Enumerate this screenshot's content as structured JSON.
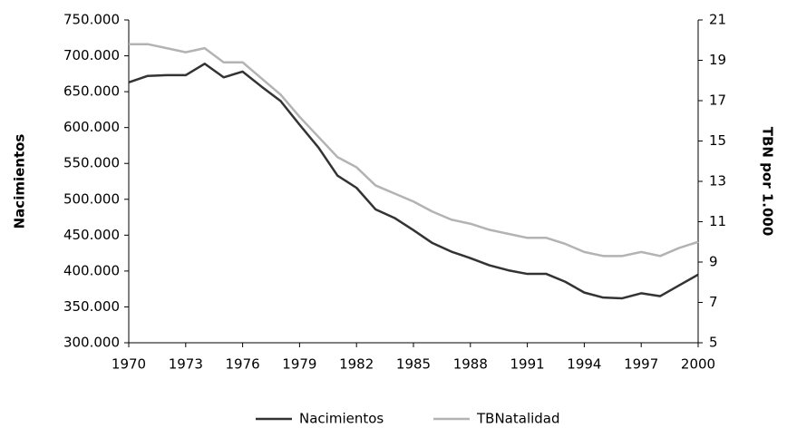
{
  "chart_data": {
    "type": "line",
    "ylabel": "Nacimientos",
    "y2label": "TBN por 1.000",
    "x": [
      1970,
      1971,
      1972,
      1973,
      1974,
      1975,
      1976,
      1977,
      1978,
      1979,
      1980,
      1981,
      1982,
      1983,
      1984,
      1985,
      1986,
      1987,
      1988,
      1989,
      1990,
      1991,
      1992,
      1993,
      1994,
      1995,
      1996,
      1997,
      1998,
      1999,
      2000
    ],
    "xlim": [
      1970,
      2000
    ],
    "xticks": [
      1970,
      1973,
      1976,
      1979,
      1982,
      1985,
      1988,
      1991,
      1994,
      1997,
      2000
    ],
    "ylim": [
      300000,
      750000
    ],
    "yticks": [
      {
        "value": 300000,
        "label": "300.000"
      },
      {
        "value": 350000,
        "label": "350.000"
      },
      {
        "value": 400000,
        "label": "400.000"
      },
      {
        "value": 450000,
        "label": "450.000"
      },
      {
        "value": 500000,
        "label": "500.000"
      },
      {
        "value": 550000,
        "label": "550.000"
      },
      {
        "value": 600000,
        "label": "600.000"
      },
      {
        "value": 650000,
        "label": "650.000"
      },
      {
        "value": 700000,
        "label": "700.000"
      },
      {
        "value": 750000,
        "label": "750.000"
      }
    ],
    "y2lim": [
      5,
      21
    ],
    "y2ticks": [
      5,
      7,
      9,
      11,
      13,
      15,
      17,
      19,
      21
    ],
    "grid": false,
    "legend": "bottom",
    "series": [
      {
        "name": "Nacimientos",
        "color": "#333333",
        "values": [
          663000,
          672000,
          673000,
          673000,
          689000,
          670000,
          678000,
          657000,
          637000,
          604000,
          572000,
          533000,
          516000,
          486000,
          474000,
          457000,
          439000,
          427000,
          418000,
          408000,
          401000,
          396000,
          396000,
          385000,
          370000,
          363000,
          362000,
          369000,
          365000,
          380000,
          395000
        ]
      },
      {
        "name": "TBNatalidad",
        "color": "#b3b3b3",
        "axis": "y2",
        "values": [
          19.8,
          19.8,
          19.6,
          19.4,
          19.6,
          18.9,
          18.9,
          18.1,
          17.3,
          16.2,
          15.2,
          14.2,
          13.7,
          12.8,
          12.4,
          12.0,
          11.5,
          11.1,
          10.9,
          10.6,
          10.4,
          10.2,
          10.2,
          9.9,
          9.5,
          9.3,
          9.3,
          9.5,
          9.3,
          9.7,
          10.0
        ]
      }
    ]
  }
}
